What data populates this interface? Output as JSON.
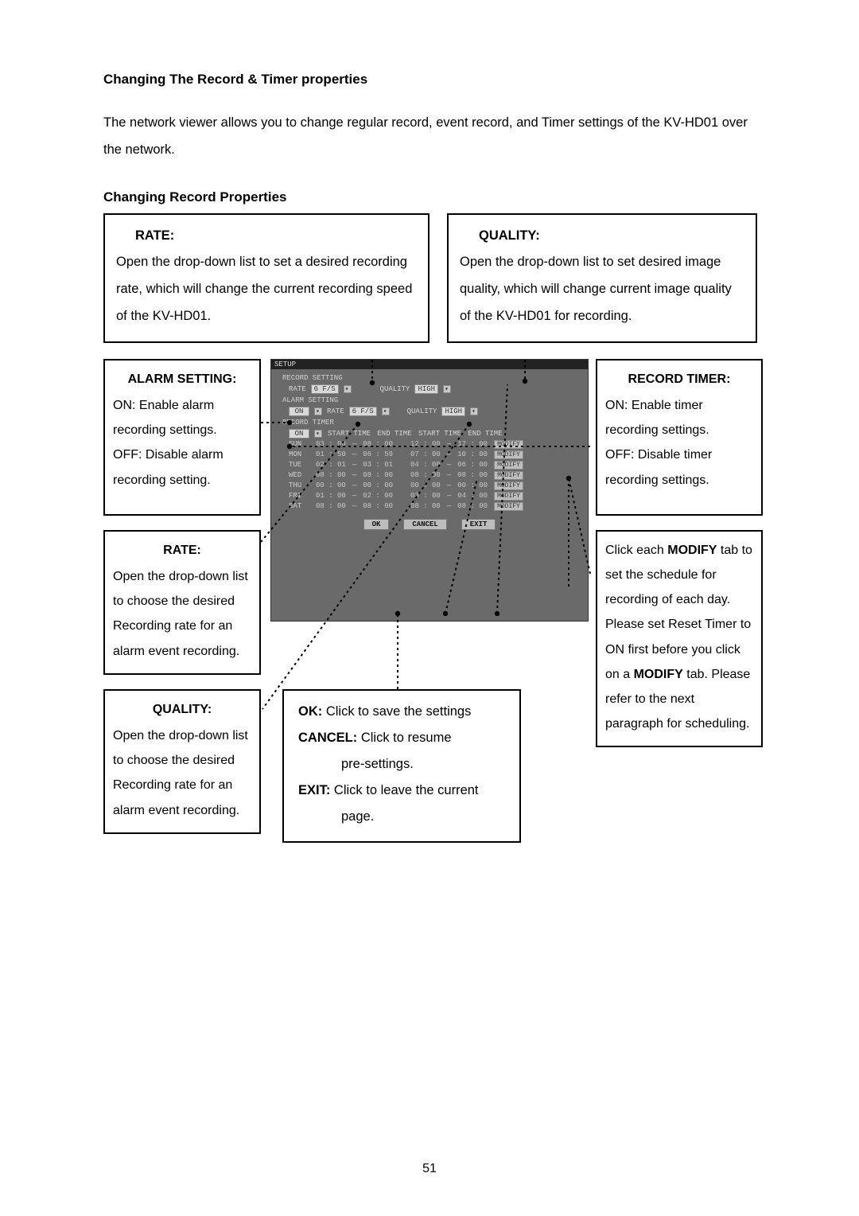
{
  "page_number": "51",
  "h1": "Changing The Record & Timer properties",
  "intro": "The network viewer allows you to change regular record, event record, and Timer settings of the KV-HD01 over the network.",
  "h2": "Changing Record Properties",
  "rate_top": {
    "title": "RATE:",
    "body": "Open the drop-down list to set a desired recording rate, which will change the current recording speed of the KV-HD01."
  },
  "quality_top": {
    "title": "QUALITY:",
    "body": "Open the drop-down list to set desired image quality, which will change current image quality of the KV-HD01 for recording."
  },
  "alarm": {
    "title": "ALARM SETTING:",
    "on": "ON: Enable alarm recording settings.",
    "off": "OFF: Disable alarm recording setting."
  },
  "rate_left": {
    "title": "RATE:",
    "body": "Open the drop-down list to choose the desired Recording rate for an alarm event recording."
  },
  "quality_left": {
    "title": "QUALITY:",
    "body": "Open the drop-down list to choose the desired Recording rate for an alarm event recording."
  },
  "timer": {
    "title": "RECORD TIMER:",
    "on": "ON: Enable timer recording settings.",
    "off": "OFF: Disable timer recording settings."
  },
  "modify": {
    "l1a": "Click each ",
    "l1b": "MODIFY",
    "l2": " tab to set the schedule for recording of each day. Please set Reset Timer to ON first before you click on a ",
    "l3": "MODIFY",
    "l4": " tab. Please refer to the next paragraph for scheduling."
  },
  "okbox": {
    "ok_k": "OK:",
    "ok_t": " Click to save the settings",
    "cancel_k": "CANCEL:",
    "cancel_t": " Click to resume",
    "cancel_t2": "pre-settings.",
    "exit_k": "EXIT:",
    "exit_t": " Click to leave the current",
    "exit_t2": "page."
  },
  "dialog": {
    "title": "SETUP",
    "record_setting": "RECORD SETTING",
    "alarm_setting": "ALARM SETTING",
    "record_timer": "RECORD TIMER",
    "rate_lbl": "RATE",
    "quality_lbl": "QUALITY",
    "rate_val": "6 F/S",
    "quality_val": "HIGH",
    "alarm_on": "ON",
    "alarm_rate": "6 F/S",
    "alarm_quality": "HIGH",
    "timer_on": "ON",
    "hdr_start": "START TIME",
    "hdr_end": "END TIME",
    "days": [
      "SUN",
      "MON",
      "TUE",
      "WED",
      "THU",
      "FRI",
      "SAT"
    ],
    "rows": [
      {
        "s1": "03 : 00",
        "e1": "08 : 00",
        "s2": "12 : 00",
        "e2": "17 : 00"
      },
      {
        "s1": "01 : 50",
        "e1": "06 : 59",
        "s2": "07 : 00",
        "e2": "10 : 00"
      },
      {
        "s1": "02 : 01",
        "e1": "03 : 01",
        "s2": "04 : 00",
        "e2": "06 : 00"
      },
      {
        "s1": "08 : 00",
        "e1": "08 : 00",
        "s2": "08 : 00",
        "e2": "08 : 00"
      },
      {
        "s1": "00 : 00",
        "e1": "00 : 00",
        "s2": "00 : 00",
        "e2": "00 : 00"
      },
      {
        "s1": "01 : 00",
        "e1": "02 : 00",
        "s2": "03 : 00",
        "e2": "04 : 00"
      },
      {
        "s1": "08 : 00",
        "e1": "08 : 00",
        "s2": "08 : 00",
        "e2": "08 : 00"
      }
    ],
    "modify_btn": "MODIFY",
    "ok_btn": "OK",
    "cancel_btn": "CANCEL",
    "exit_btn": "EXIT"
  },
  "colors": {
    "border": "#000000",
    "dialog_bg": "#6a6a6a",
    "dialog_text": "#c8c8c8",
    "field_bg": "#d8d8d8",
    "btn_bg": "#bdbdbd"
  }
}
